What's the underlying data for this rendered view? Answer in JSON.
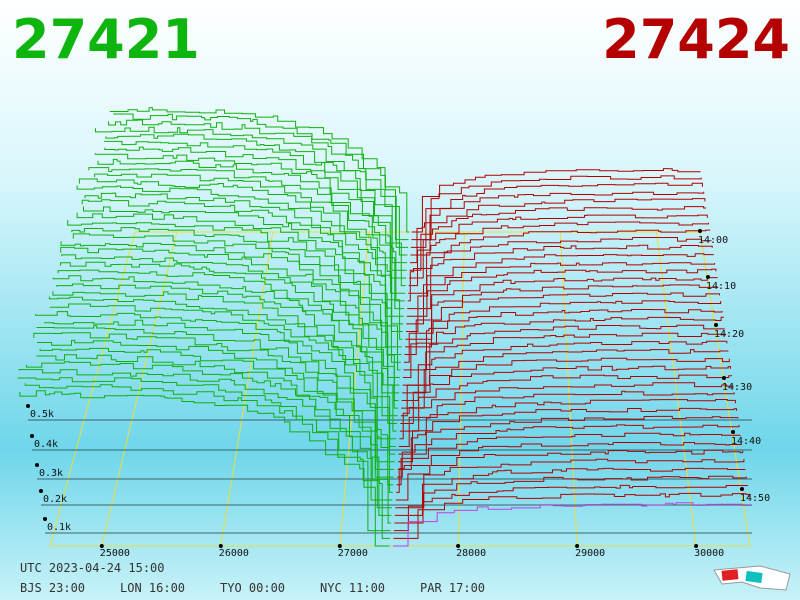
{
  "header": {
    "bid": "27421",
    "ask": "27424"
  },
  "x_axis": [
    "25000",
    "26000",
    "27000",
    "28000",
    "29000",
    "30000"
  ],
  "depth_axis": [
    "0.5k",
    "0.4k",
    "0.3k",
    "0.2k",
    "0.1k"
  ],
  "time_axis": [
    "14:00",
    "14:10",
    "14:20",
    "14:30",
    "14:40",
    "14:50"
  ],
  "footer": {
    "utc": "UTC 2023-04-24 15:00",
    "zones": [
      "BJS 23:00",
      "LON 16:00",
      "TYO 00:00",
      "NYC 11:00",
      "PAR 17:00"
    ]
  }
}
